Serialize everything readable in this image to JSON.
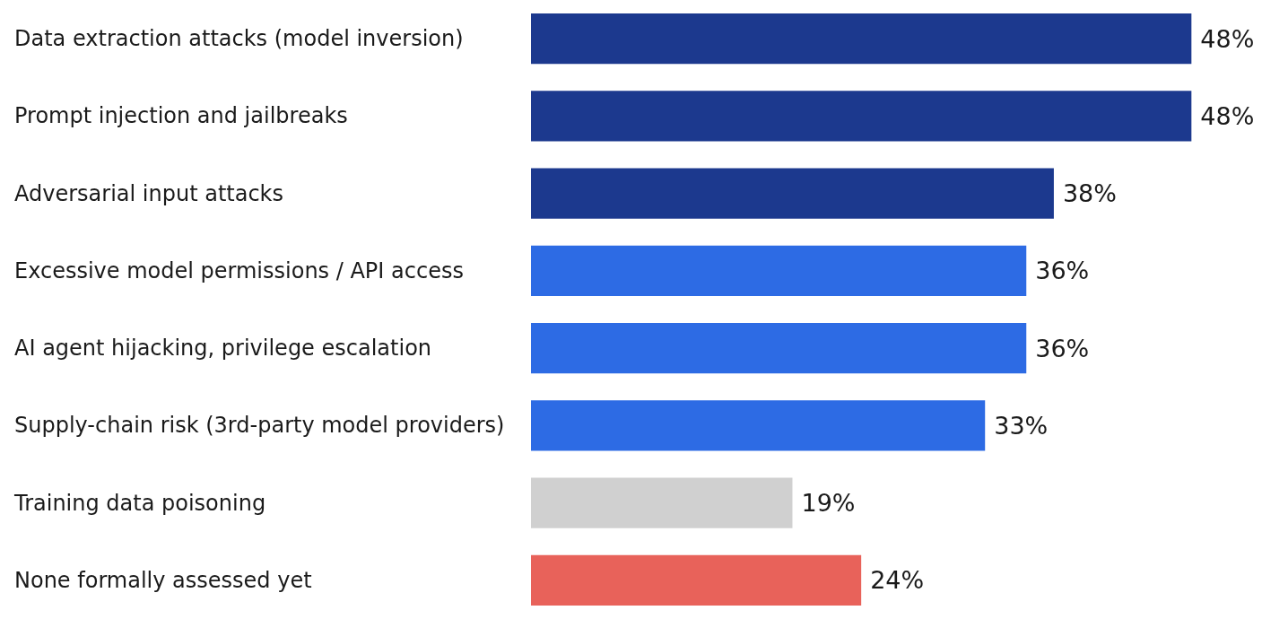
{
  "chart_data": {
    "type": "bar",
    "orientation": "horizontal",
    "categories": [
      "Data extraction attacks (model inversion)",
      "Prompt injection and jailbreaks",
      "Adversarial input attacks",
      "Excessive model permissions / API access",
      "AI agent hijacking, privilege escalation",
      "Supply-chain risk (3rd-party model providers)",
      "Training data poisoning",
      "None formally assessed yet"
    ],
    "values": [
      48,
      48,
      38,
      36,
      36,
      33,
      19,
      24
    ],
    "value_labels": [
      "48%",
      "48%",
      "38%",
      "36%",
      "36%",
      "33%",
      "19%",
      "24%"
    ],
    "colors": [
      "#1c398e",
      "#1c398e",
      "#1c398e",
      "#2d6be4",
      "#2d6be4",
      "#2d6be4",
      "#d0d0d0",
      "#e8625a"
    ],
    "grid": false
  }
}
